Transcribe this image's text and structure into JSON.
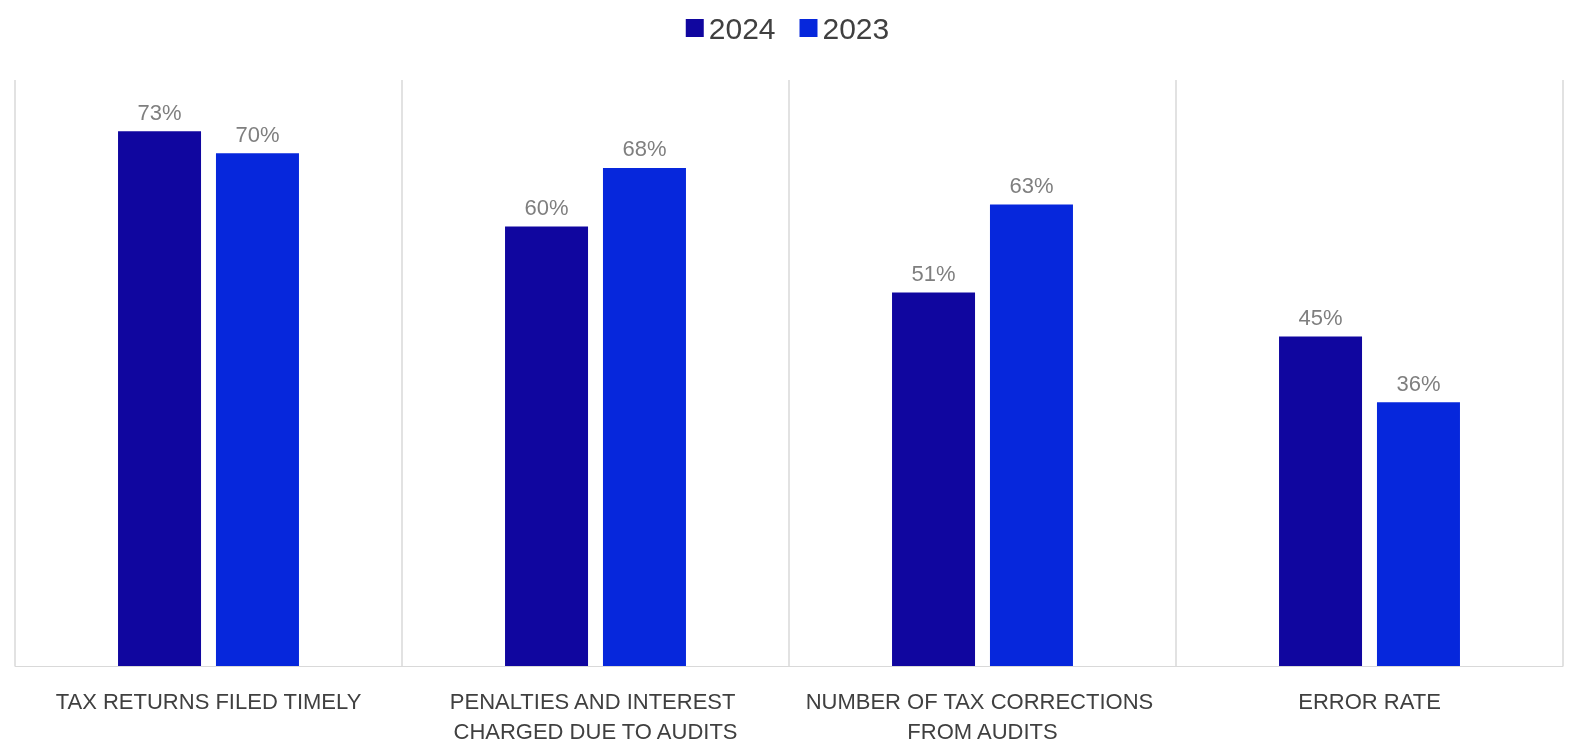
{
  "chart_data": {
    "type": "bar",
    "categories": [
      "TAX RETURNS FILED TIMELY",
      "PENALTIES AND INTEREST CHARGED DUE TO AUDITS",
      "NUMBER OF TAX CORRECTIONS FROM AUDITS",
      "ERROR RATE"
    ],
    "series": [
      {
        "name": "2024",
        "color": "#10069f",
        "values": [
          73,
          60,
          51,
          45
        ],
        "value_labels": [
          "73%",
          "60%",
          "51%",
          "45%"
        ]
      },
      {
        "name": "2023",
        "color": "#0627dc",
        "values": [
          70,
          68,
          63,
          36
        ],
        "value_labels": [
          "70%",
          "68%",
          "63%",
          "36%"
        ]
      }
    ],
    "legend": "top",
    "grid": "x",
    "tick_labels": "x"
  }
}
